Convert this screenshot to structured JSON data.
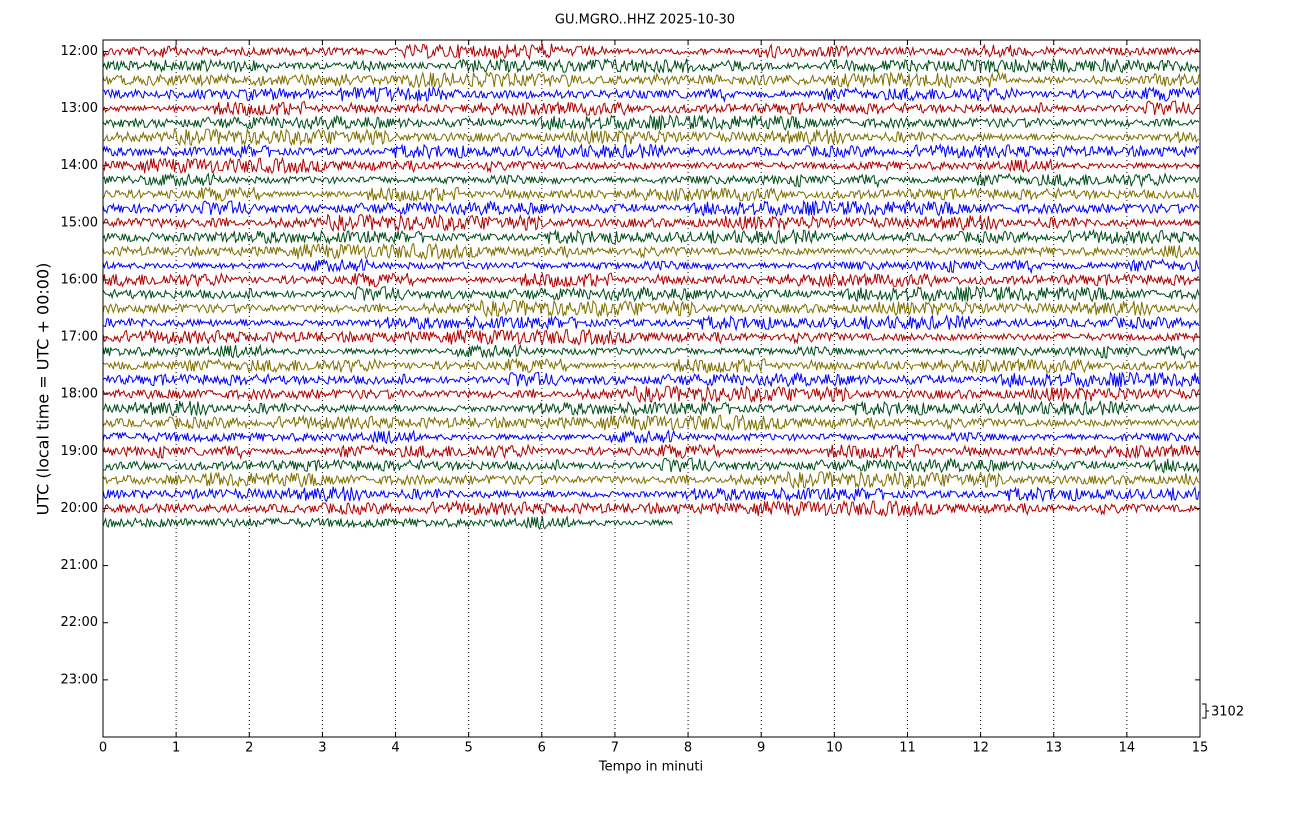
{
  "chart_data": {
    "type": "dayplot",
    "title": "GU.MGRO..HHZ 2025-10-30",
    "xlabel": "Tempo in minuti",
    "ylabel": "UTC (local time = UTC + 00:00)",
    "xlim": [
      0,
      15
    ],
    "xticks": [
      0,
      1,
      2,
      3,
      4,
      5,
      6,
      7,
      8,
      9,
      10,
      11,
      12,
      13,
      14,
      15
    ],
    "ylim": [
      11.8,
      24
    ],
    "y_inverted": true,
    "yticks": [
      {
        "value": 12,
        "label": "12:00"
      },
      {
        "value": 13,
        "label": "13:00"
      },
      {
        "value": 14,
        "label": "14:00"
      },
      {
        "value": 15,
        "label": "15:00"
      },
      {
        "value": 16,
        "label": "16:00"
      },
      {
        "value": 17,
        "label": "17:00"
      },
      {
        "value": 18,
        "label": "18:00"
      },
      {
        "value": 19,
        "label": "19:00"
      },
      {
        "value": 20,
        "label": "20:00"
      },
      {
        "value": 21,
        "label": "21:00"
      },
      {
        "value": 22,
        "label": "22:00"
      },
      {
        "value": 23,
        "label": "23:00"
      }
    ],
    "grid": true,
    "traces": {
      "colors": [
        "#b00000",
        "#004d1a",
        "#7f6f00",
        "#0000ff"
      ],
      "row_minutes": 15,
      "start_hour": 12,
      "end_hour": 20.38
    },
    "scale_label": 3102
  }
}
